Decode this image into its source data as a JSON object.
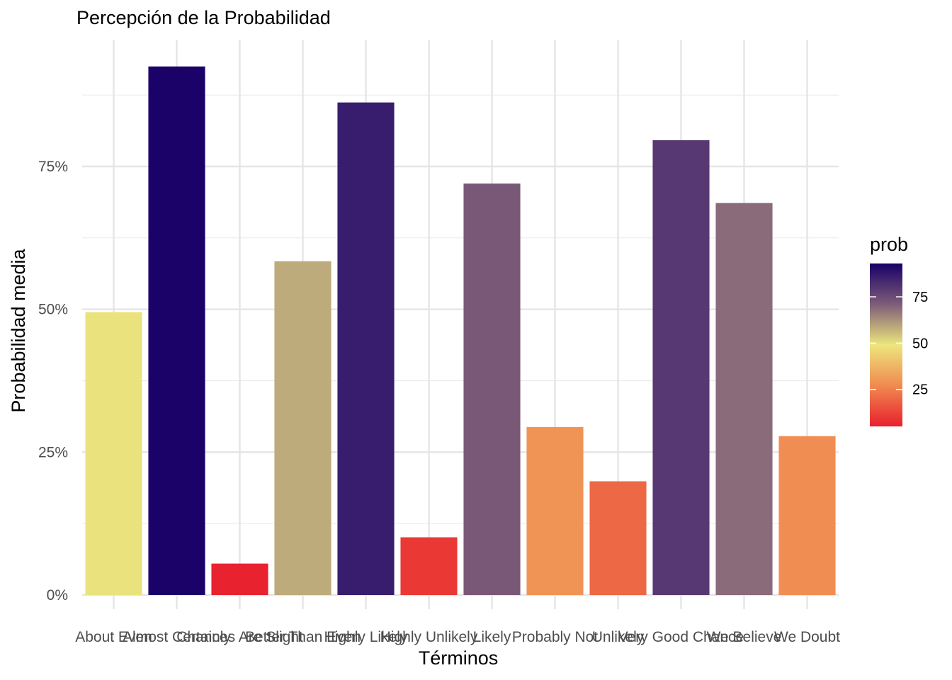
{
  "chart_data": {
    "type": "bar",
    "title": "Percepción de la Probabilidad",
    "xlabel": "Términos",
    "ylabel": "Probabilidad media",
    "categories": [
      "About Even",
      "Almost Certainly",
      "Chances Are Slight",
      "Better Than Even",
      "Highly Likely",
      "Highly Unlikely",
      "Likely",
      "Probably Not",
      "Unlikely",
      "Very Good Chance",
      "We Believe",
      "We Doubt"
    ],
    "values": [
      49.5,
      92.5,
      5.5,
      58.4,
      86.2,
      10.1,
      72.0,
      29.4,
      19.9,
      79.6,
      68.6,
      27.8
    ],
    "ylim": [
      0,
      100
    ],
    "y_ticks": [
      0,
      25,
      50,
      75
    ],
    "y_tick_labels": [
      "0%",
      "25%",
      "50%",
      "75%"
    ],
    "grid": true,
    "legend": {
      "title": "prob",
      "position": "right",
      "ticks": [
        25,
        50,
        75
      ],
      "tick_labels": [
        "25",
        "50",
        "75"
      ],
      "range": [
        5,
        93
      ],
      "colors": [
        "#e8202d",
        "#f08a50",
        "#ede67d",
        "#7e5c78",
        "#190068"
      ]
    }
  }
}
